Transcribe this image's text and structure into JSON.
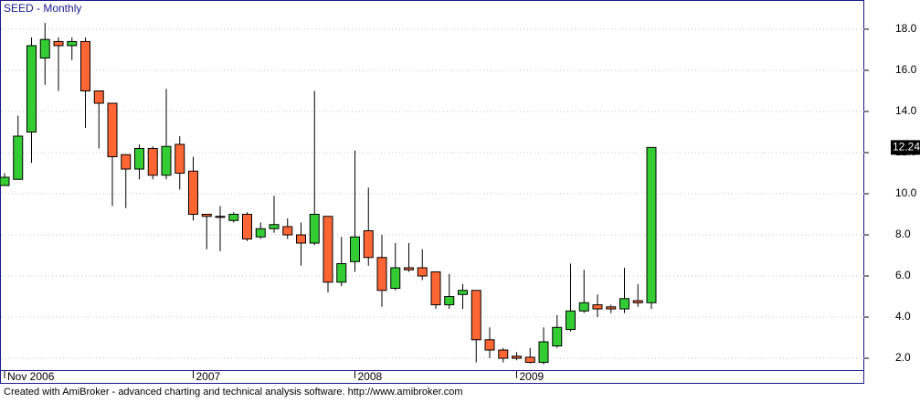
{
  "chart_data": {
    "type": "candlestick",
    "title": "SEED - Monthly",
    "categories": [
      "Nov 2006",
      null,
      null,
      null,
      null,
      null,
      null,
      null,
      null,
      null,
      null,
      null,
      null,
      null,
      "2007",
      null,
      null,
      null,
      null,
      null,
      null,
      null,
      null,
      null,
      null,
      null,
      "2008",
      null,
      null,
      null,
      null,
      null,
      null,
      null,
      null,
      null,
      null,
      null,
      "2009",
      null,
      null,
      null,
      null,
      null,
      null,
      null,
      null,
      null,
      null
    ],
    "open": [
      10.4,
      10.7,
      13.0,
      16.6,
      17.4,
      17.2,
      17.4,
      15.0,
      14.4,
      11.9,
      11.2,
      12.2,
      10.9,
      12.4,
      11.1,
      9.0,
      8.9,
      8.7,
      9.0,
      7.9,
      8.3,
      8.4,
      8.0,
      7.6,
      8.9,
      5.7,
      6.7,
      8.2,
      6.9,
      5.4,
      6.4,
      6.4,
      6.2,
      4.6,
      5.1,
      5.3,
      2.9,
      2.4,
      2.1,
      2.05,
      1.8,
      2.6,
      3.4,
      4.3,
      4.6,
      4.5,
      4.4,
      4.8,
      4.7
    ],
    "high": [
      11.0,
      13.8,
      17.6,
      18.3,
      17.6,
      17.6,
      17.6,
      15.0,
      14.4,
      11.9,
      12.4,
      12.3,
      15.1,
      12.8,
      11.8,
      9.0,
      9.4,
      9.1,
      9.1,
      8.6,
      9.9,
      8.8,
      8.6,
      15.0,
      8.9,
      7.9,
      12.1,
      10.3,
      8.0,
      7.6,
      7.6,
      7.3,
      6.2,
      6.1,
      5.6,
      5.3,
      3.5,
      2.5,
      2.3,
      2.5,
      3.5,
      4.1,
      6.6,
      6.3,
      5.1,
      4.6,
      6.4,
      5.6,
      12.2499
    ],
    "low": [
      10.4,
      10.7,
      11.5,
      15.3,
      15.0,
      16.5,
      13.2,
      12.2,
      9.4,
      9.3,
      10.7,
      10.7,
      10.7,
      10.2,
      8.7,
      7.3,
      7.2,
      8.6,
      7.7,
      7.8,
      8.1,
      7.8,
      6.5,
      7.5,
      5.2,
      5.5,
      6.2,
      6.5,
      4.5,
      5.3,
      6.2,
      5.8,
      4.4,
      4.4,
      4.4,
      1.8,
      2.0,
      1.8,
      1.9,
      1.75,
      1.7,
      2.5,
      3.3,
      4.2,
      4.0,
      4.2,
      4.2,
      4.5,
      4.4
    ],
    "close": [
      10.8,
      12.8,
      17.2,
      17.5,
      17.2,
      17.4,
      15.0,
      14.4,
      11.8,
      11.2,
      12.2,
      10.9,
      12.3,
      11.0,
      9.0,
      8.9,
      8.85,
      9.0,
      7.8,
      8.3,
      8.5,
      8.0,
      7.6,
      9.0,
      5.7,
      6.6,
      7.9,
      6.9,
      5.3,
      6.4,
      6.3,
      6.0,
      4.6,
      5.0,
      5.3,
      2.9,
      2.4,
      2.0,
      2.0,
      1.8,
      2.8,
      3.5,
      4.3,
      4.7,
      4.4,
      4.4,
      4.9,
      4.7,
      12.2499
    ],
    "up_color": "#33cc33",
    "down_color": "#ff6633",
    "ylim": [
      1.38,
      19.42
    ],
    "yticks": [
      {
        "value": 2,
        "label": "2.0"
      },
      {
        "value": 4,
        "label": "4.0"
      },
      {
        "value": 6,
        "label": "6.0"
      },
      {
        "value": 8,
        "label": "8.0"
      },
      {
        "value": 10,
        "label": "10.0"
      },
      {
        "value": 12,
        "label": "12.0"
      },
      {
        "value": 14,
        "label": "14.0"
      },
      {
        "value": 16,
        "label": "16.0"
      },
      {
        "value": 18,
        "label": "18.0"
      }
    ],
    "grid": true
  },
  "footer": "Created with AmiBroker - advanced charting and technical analysis software. http://www.amibroker.com"
}
